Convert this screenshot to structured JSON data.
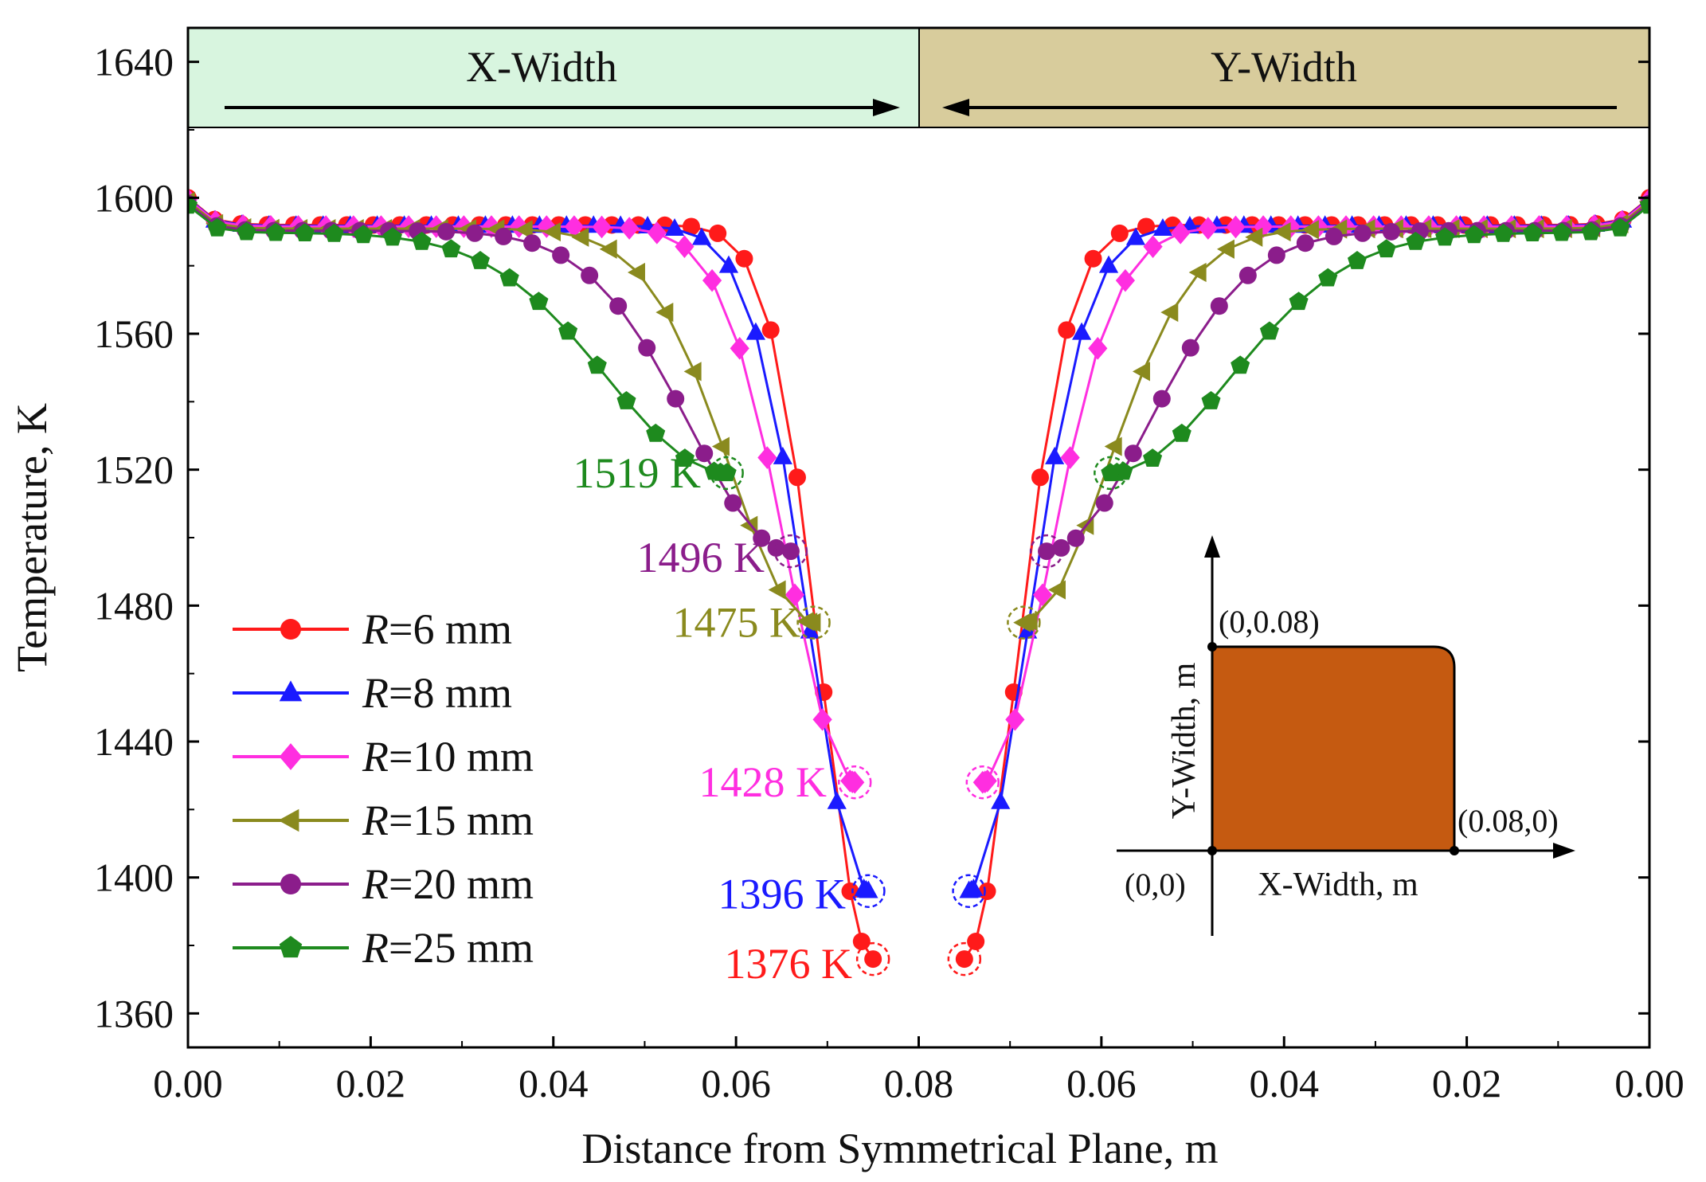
{
  "chart_data": {
    "type": "line",
    "title": "",
    "xlabel": "Distance from Symmetrical Plane, m",
    "ylabel": "Temperature, K",
    "xlim_left": [
      0.0,
      0.08
    ],
    "xlim_right": [
      0.08,
      0.0
    ],
    "ylim": [
      1350,
      1650
    ],
    "x_tick_labels": [
      "0.00",
      "0.02",
      "0.04",
      "0.06",
      "0.08",
      "0.06",
      "0.04",
      "0.02",
      "0.00"
    ],
    "y_ticks": [
      1360,
      1400,
      1440,
      1480,
      1520,
      1560,
      1600,
      1640
    ],
    "y_tick_labels": [
      "1360",
      "1400",
      "1440",
      "1480",
      "1520",
      "1560",
      "1600",
      "1640"
    ],
    "panels": {
      "left": {
        "label": "X-Width",
        "color": "#d8f5df"
      },
      "right": {
        "label": "Y-Width",
        "color": "#d8cc9c"
      }
    },
    "legend_position": "lower-left",
    "series": [
      {
        "name": "R=6 mm",
        "prefix": "R",
        "suffix": "=6 mm",
        "color": "#ff1a1a",
        "marker": "circle",
        "radius_mm": 6,
        "min_temp": 1376,
        "min_x": 0.075,
        "annotation": "1376 K"
      },
      {
        "name": "R=8 mm",
        "prefix": "R",
        "suffix": "=8 mm",
        "color": "#1a1aff",
        "marker": "triangle-up",
        "radius_mm": 8,
        "min_temp": 1396,
        "min_x": 0.0745,
        "annotation": "1396 K"
      },
      {
        "name": "R=10 mm",
        "prefix": "R",
        "suffix": "=10 mm",
        "color": "#ff2ee0",
        "marker": "diamond",
        "radius_mm": 10,
        "min_temp": 1428,
        "min_x": 0.073,
        "annotation": "1428 K"
      },
      {
        "name": "R=15 mm",
        "prefix": "R",
        "suffix": "=15 mm",
        "color": "#8a8a1e",
        "marker": "triangle-left",
        "radius_mm": 15,
        "min_temp": 1475,
        "min_x": 0.0685,
        "annotation": "1475 K"
      },
      {
        "name": "R=20 mm",
        "prefix": "R",
        "suffix": "=20 mm",
        "color": "#8b1d8b",
        "marker": "circle",
        "radius_mm": 20,
        "min_temp": 1496,
        "min_x": 0.066,
        "annotation": "1496 K"
      },
      {
        "name": "R=25 mm",
        "prefix": "R",
        "suffix": "=25 mm",
        "color": "#1e8a1e",
        "marker": "pentagon",
        "radius_mm": 25,
        "min_temp": 1519,
        "min_x": 0.059,
        "annotation": "1519 K"
      }
    ],
    "annotation_colors": {
      "1519 K": "#1e8a1e",
      "1496 K": "#8b1d8b",
      "1475 K": "#8a8a1e",
      "1428 K": "#ff2ee0",
      "1396 K": "#1a1aff",
      "1376 K": "#ff1a1a"
    },
    "inset": {
      "xlabel": "X-Width, m",
      "ylabel": "Y-Width, m",
      "origin_label": "(0,0)",
      "top_label": "(0,0.08)",
      "right_label": "(0.08,0)",
      "fill_color": "#c55a11"
    }
  }
}
